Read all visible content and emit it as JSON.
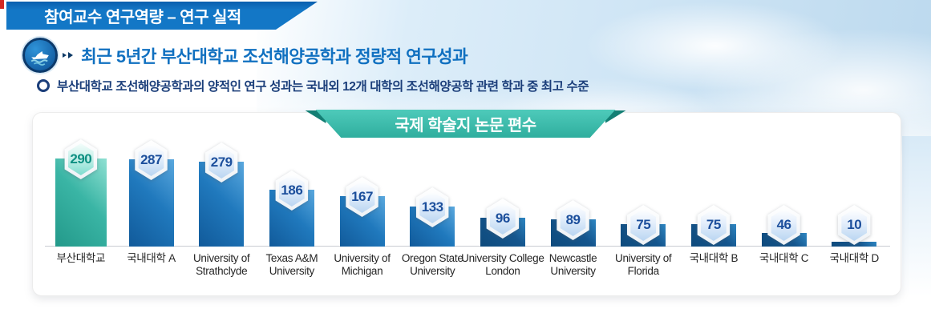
{
  "header": {
    "banner": "참여교수 연구역량 – 연구 실적"
  },
  "title": {
    "text": "최근 5년간 부산대학교 조선해양공학과 정량적 연구성과"
  },
  "subtitle": {
    "text": "부산대학교 조선해양공학과의 양적인 연구 성과는 국내외 12개 대학의 조선해양공학 관련 학과 중 최고 수준"
  },
  "chart_data": {
    "type": "bar",
    "title": "국제 학술지 논문 편수",
    "categories": [
      "부산대학교",
      "국내대학 A",
      "University of Strathclyde",
      "Texas A&M University",
      "University of Michigan",
      "Oregon State University",
      "University College London",
      "Newcastle University",
      "University of Florida",
      "국내대학 B",
      "국내대학 C",
      "국내대학 D"
    ],
    "values": [
      290,
      287,
      279,
      186,
      167,
      133,
      96,
      89,
      75,
      75,
      46,
      10
    ],
    "bar_styles": [
      "teal",
      "blue",
      "blue",
      "blue",
      "blue",
      "blue",
      "navy",
      "navy",
      "navy",
      "navy",
      "navy",
      "navy"
    ],
    "xlabel": "",
    "ylabel": "",
    "ylim": [
      0,
      290
    ],
    "grid": false,
    "legend": "none",
    "value_label_style": "hexagon-badge",
    "colors": {
      "highlight": "#3ab5a5",
      "default": "#2079bd",
      "dark": "#15568e",
      "ribbon": "#2fae9e",
      "banner": "#1377c6",
      "title_text": "#1070c0",
      "subtitle_text": "#1b3e7a"
    }
  }
}
